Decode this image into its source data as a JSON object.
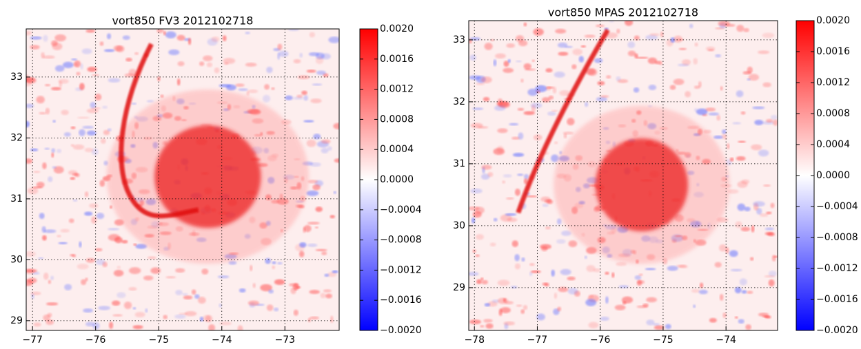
{
  "chart_data": [
    {
      "type": "heatmap",
      "title": "vort850 FV3 2012102718",
      "xlim": [
        -77.1,
        -72.14
      ],
      "ylim": [
        28.84,
        33.79
      ],
      "xticks": [
        {
          "value": -77,
          "label": "−77"
        },
        {
          "value": -76,
          "label": "−76"
        },
        {
          "value": -75,
          "label": "−75"
        },
        {
          "value": -74,
          "label": "−74"
        },
        {
          "value": -73,
          "label": "−73"
        }
      ],
      "yticks": [
        29,
        30,
        31,
        32,
        33
      ],
      "grid": true,
      "colorbar": {
        "lim": [
          -0.002,
          0.002
        ],
        "colors": [
          "#0000ff",
          "#ffffff",
          "#ff0000"
        ],
        "ticks": [
          {
            "value": 0.002,
            "label": "0.0020"
          },
          {
            "value": 0.0016,
            "label": "0.0016"
          },
          {
            "value": 0.0012,
            "label": "0.0012"
          },
          {
            "value": 0.0008,
            "label": "0.0008"
          },
          {
            "value": 0.0004,
            "label": "0.0004"
          },
          {
            "value": 0,
            "label": "0.0000"
          },
          {
            "value": -0.0004,
            "label": "−0.0004"
          },
          {
            "value": -0.0008,
            "label": "−0.0008"
          },
          {
            "value": -0.0012,
            "label": "−0.0012"
          },
          {
            "value": -0.0016,
            "label": "−0.0016"
          },
          {
            "value": -0.002,
            "label": "−0.0020"
          }
        ]
      }
    },
    {
      "type": "heatmap",
      "title": "vort850 MPAS 2012102718",
      "xlim": [
        -78.09,
        -73.18
      ],
      "ylim": [
        28.31,
        33.31
      ],
      "xticks": [
        {
          "value": -78,
          "label": "−78"
        },
        {
          "value": -77,
          "label": "−77"
        },
        {
          "value": -76,
          "label": "−76"
        },
        {
          "value": -75,
          "label": "−75"
        },
        {
          "value": -74,
          "label": "−74"
        }
      ],
      "yticks": [
        29,
        30,
        31,
        32,
        33
      ],
      "grid": true,
      "colorbar": {
        "lim": [
          -0.002,
          0.002
        ],
        "colors": [
          "#0000ff",
          "#ffffff",
          "#ff0000"
        ],
        "ticks": [
          {
            "value": 0.002,
            "label": "0.0020"
          },
          {
            "value": 0.0016,
            "label": "0.0016"
          },
          {
            "value": 0.0012,
            "label": "0.0012"
          },
          {
            "value": 0.0008,
            "label": "0.0008"
          },
          {
            "value": 0.0004,
            "label": "0.0004"
          },
          {
            "value": 0,
            "label": "0.0000"
          },
          {
            "value": -0.0004,
            "label": "−0.0004"
          },
          {
            "value": -0.0008,
            "label": "−0.0008"
          },
          {
            "value": -0.0012,
            "label": "−0.0012"
          },
          {
            "value": -0.0016,
            "label": "−0.0016"
          },
          {
            "value": -0.002,
            "label": "−0.0020"
          }
        ]
      }
    }
  ]
}
